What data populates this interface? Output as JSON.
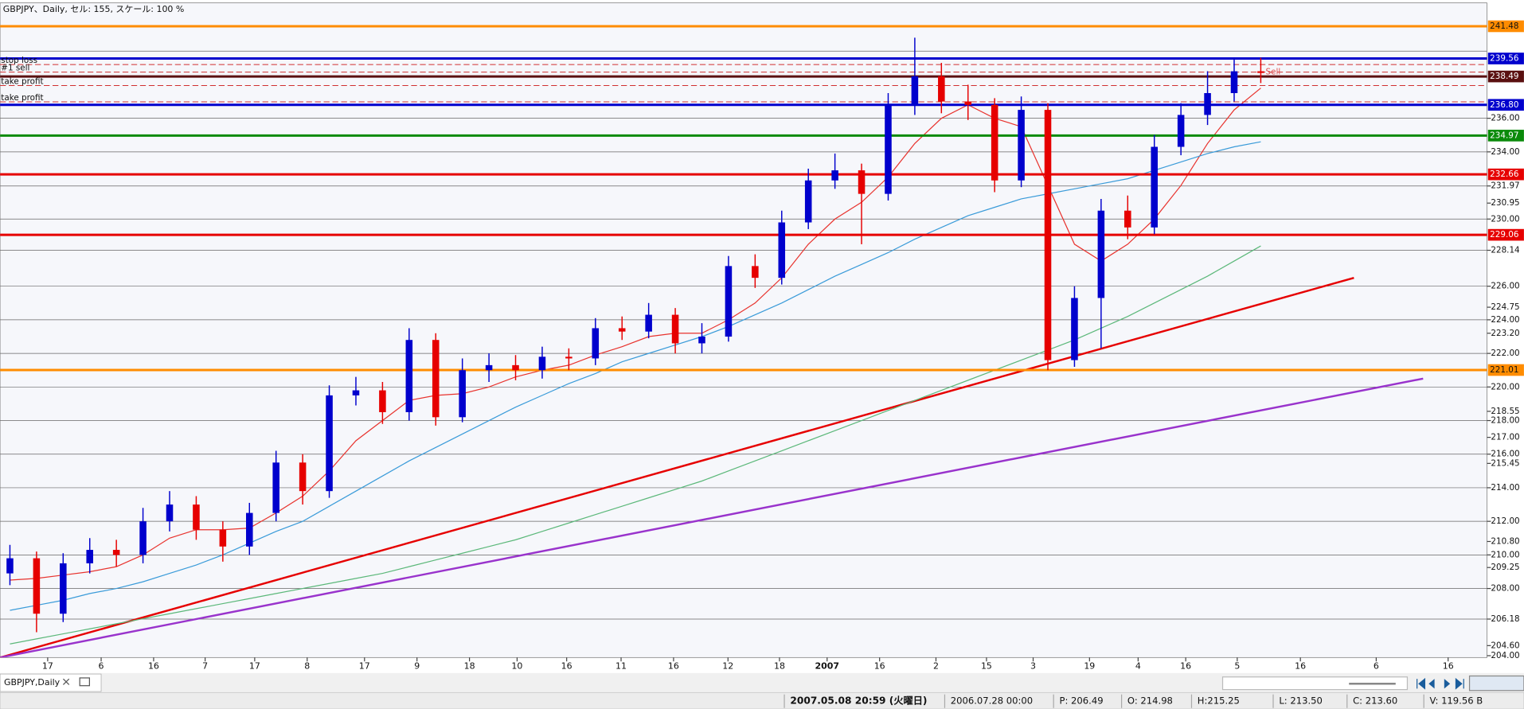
{
  "header": {
    "title": "GBPJPY、Daily, セル: 155, スケール: 100 %"
  },
  "chart_data": {
    "type": "candlestick",
    "ylim": [
      203.89,
      242.87
    ],
    "xlim": [
      -0.37,
      55.5
    ],
    "up_color": "#0000cd",
    "down_color": "#e60000",
    "x_labels": [
      "17",
      "6",
      "16",
      "7",
      "17",
      "8",
      "17",
      "9",
      "18",
      "10",
      "16",
      "11",
      "16",
      "12",
      "18",
      "2007",
      "16",
      "2",
      "15",
      "3",
      "19",
      "4",
      "16",
      "5",
      "16",
      "6",
      "16"
    ],
    "ohlc": [
      [
        208.9,
        210.6,
        208.2,
        209.8
      ],
      [
        209.8,
        210.2,
        205.4,
        206.5
      ],
      [
        206.5,
        210.1,
        206.0,
        209.5
      ],
      [
        209.5,
        211.0,
        208.9,
        210.3
      ],
      [
        210.3,
        210.9,
        209.3,
        210.0
      ],
      [
        210.0,
        212.8,
        209.5,
        212.0
      ],
      [
        212.0,
        213.8,
        211.4,
        213.0
      ],
      [
        213.0,
        213.5,
        210.9,
        211.5
      ],
      [
        211.5,
        212.0,
        209.6,
        210.5
      ],
      [
        210.5,
        213.1,
        210.0,
        212.5
      ],
      [
        212.5,
        216.2,
        212.0,
        215.5
      ],
      [
        215.5,
        216.0,
        213.0,
        213.8
      ],
      [
        213.8,
        220.1,
        213.4,
        219.5
      ],
      [
        219.5,
        220.6,
        218.9,
        219.8
      ],
      [
        219.8,
        220.3,
        217.8,
        218.5
      ],
      [
        218.5,
        223.5,
        218.0,
        222.8
      ],
      [
        222.8,
        223.2,
        217.7,
        218.2
      ],
      [
        218.2,
        221.7,
        217.9,
        221.0
      ],
      [
        221.0,
        222.0,
        220.3,
        221.3
      ],
      [
        221.3,
        221.9,
        220.4,
        221.0
      ],
      [
        221.0,
        222.4,
        220.5,
        221.8
      ],
      [
        221.8,
        222.3,
        221.0,
        221.7
      ],
      [
        221.7,
        224.1,
        221.3,
        223.5
      ],
      [
        223.5,
        224.2,
        222.8,
        223.3
      ],
      [
        223.3,
        225.0,
        222.9,
        224.3
      ],
      [
        224.3,
        224.7,
        222.0,
        222.6
      ],
      [
        222.6,
        223.8,
        222.0,
        223.0
      ],
      [
        223.0,
        227.8,
        222.7,
        227.2
      ],
      [
        227.2,
        227.9,
        225.9,
        226.5
      ],
      [
        226.5,
        230.5,
        226.1,
        229.8
      ],
      [
        229.8,
        233.0,
        229.4,
        232.3
      ],
      [
        232.3,
        233.9,
        231.8,
        232.9
      ],
      [
        232.9,
        233.3,
        228.5,
        231.5
      ],
      [
        231.5,
        237.5,
        231.1,
        236.8
      ],
      [
        236.8,
        240.8,
        236.2,
        238.5
      ],
      [
        238.5,
        239.3,
        236.3,
        237.0
      ],
      [
        237.0,
        238.0,
        235.9,
        236.8
      ],
      [
        236.8,
        237.2,
        231.6,
        232.3
      ],
      [
        232.3,
        237.3,
        231.9,
        236.5
      ],
      [
        236.5,
        236.9,
        221.0,
        221.6
      ],
      [
        221.6,
        226.0,
        221.2,
        225.3
      ],
      [
        225.3,
        231.2,
        222.3,
        230.5
      ],
      [
        230.5,
        231.4,
        228.8,
        229.5
      ],
      [
        229.5,
        235.0,
        229.1,
        234.3
      ],
      [
        234.3,
        236.9,
        233.8,
        236.2
      ],
      [
        236.2,
        238.8,
        235.6,
        237.5
      ],
      [
        237.5,
        239.5,
        237.0,
        238.8
      ],
      [
        238.8,
        239.6,
        238.1,
        238.7
      ]
    ],
    "moving_averages": [
      {
        "color": "#e8332e",
        "values": [
          208.5,
          208.6,
          208.8,
          209.0,
          209.3,
          210.0,
          211.0,
          211.5,
          211.5,
          211.6,
          212.5,
          213.5,
          215.0,
          216.8,
          218.0,
          219.2,
          219.5,
          219.6,
          220.0,
          220.6,
          221.0,
          221.3,
          221.9,
          222.4,
          223.0,
          223.2,
          223.2,
          224.0,
          225.0,
          226.5,
          228.5,
          230.0,
          231.0,
          232.5,
          234.5,
          236.0,
          236.8,
          236.0,
          235.5,
          232.0,
          228.5,
          227.5,
          228.5,
          230.0,
          232.0,
          234.5,
          236.5,
          237.8
        ]
      },
      {
        "color": "#3a9bd9",
        "values": [
          206.7,
          207.0,
          207.3,
          207.7,
          208.0,
          208.4,
          208.9,
          209.4,
          210.0,
          210.7,
          211.4,
          212.0,
          212.9,
          213.8,
          214.7,
          215.6,
          216.4,
          217.2,
          218.0,
          218.8,
          219.5,
          220.2,
          220.8,
          221.5,
          222.0,
          222.5,
          223.0,
          223.6,
          224.3,
          225.0,
          225.8,
          226.6,
          227.3,
          228.0,
          228.8,
          229.5,
          230.2,
          230.7,
          231.2,
          231.5,
          231.8,
          232.1,
          232.4,
          232.9,
          233.4,
          233.9,
          234.3,
          234.6
        ]
      },
      {
        "color": "#5cb87a",
        "values": [
          204.7,
          205.0,
          205.3,
          205.6,
          205.9,
          206.2,
          206.5,
          206.8,
          207.1,
          207.4,
          207.7,
          208.0,
          208.3,
          208.6,
          208.9,
          209.3,
          209.7,
          210.1,
          210.5,
          210.9,
          211.4,
          211.9,
          212.4,
          212.9,
          213.4,
          213.9,
          214.4,
          215.0,
          215.6,
          216.2,
          216.8,
          217.4,
          218.0,
          218.6,
          219.2,
          219.8,
          220.4,
          221.0,
          221.6,
          222.2,
          222.8,
          223.5,
          224.2,
          225.0,
          225.8,
          226.6,
          227.5,
          228.4
        ]
      }
    ],
    "hlines": [
      240.0,
      236.0,
      234.0,
      231.97,
      230.0,
      228.14,
      226.0,
      224.0,
      222.0,
      220.0,
      218.0,
      216.0,
      214.0,
      212.0,
      210.0,
      208.0,
      206.18
    ],
    "levels": [
      {
        "value": 241.48,
        "label": "241.48",
        "color": "#ff8c00"
      },
      {
        "value": 239.56,
        "label": "239.56",
        "color": "#0000cd"
      },
      {
        "value": 238.49,
        "label": "238.49",
        "color": "#5a1010"
      },
      {
        "value": 236.8,
        "label": "236.80",
        "color": "#0000cd"
      },
      {
        "value": 234.97,
        "label": "234.97",
        "color": "#0a8a0a"
      },
      {
        "value": 232.66,
        "label": "232.66",
        "color": "#e60000"
      },
      {
        "value": 229.06,
        "label": "229.06",
        "color": "#e60000"
      },
      {
        "value": 221.01,
        "label": "221.01",
        "color": "#ff8c00"
      }
    ],
    "orders": [
      {
        "label": "stop loss",
        "value": 239.2
      },
      {
        "label": "#1 sell",
        "value": 238.75
      },
      {
        "label": "take profit",
        "value": 237.95
      },
      {
        "label": "take profit",
        "value": 236.98
      }
    ],
    "trade_marker": {
      "label": "Sell"
    },
    "trendlines": [
      {
        "color": "#e60000",
        "from": [
          -0.37,
          203.89
        ],
        "to": [
          50.5,
          226.5
        ]
      },
      {
        "color": "#9933cc",
        "from": [
          -0.37,
          203.89
        ],
        "to": [
          53.1,
          220.5
        ]
      }
    ],
    "yticks": [
      {
        "value": 204.0,
        "label": "204.00"
      },
      {
        "value": 204.6,
        "label": "204.60"
      },
      {
        "value": 206.18,
        "label": "206.18"
      },
      {
        "value": 208.0,
        "label": "208.00"
      },
      {
        "value": 209.25,
        "label": "209.25"
      },
      {
        "value": 210.0,
        "label": "210.00"
      },
      {
        "value": 210.8,
        "label": "210.80"
      },
      {
        "value": 212.0,
        "label": "212.00"
      },
      {
        "value": 214.0,
        "label": "214.00"
      },
      {
        "value": 215.45,
        "label": "215.45"
      },
      {
        "value": 216.0,
        "label": "216.00"
      },
      {
        "value": 217.0,
        "label": "217.00"
      },
      {
        "value": 218.0,
        "label": "218.00"
      },
      {
        "value": 218.55,
        "label": "218.55"
      },
      {
        "value": 220.0,
        "label": "220.00"
      },
      {
        "value": 222.0,
        "label": "222.00"
      },
      {
        "value": 223.2,
        "label": "223.20"
      },
      {
        "value": 224.0,
        "label": "224.00"
      },
      {
        "value": 224.75,
        "label": "224.75"
      },
      {
        "value": 226.0,
        "label": "226.00"
      },
      {
        "value": 228.14,
        "label": "228.14"
      },
      {
        "value": 230.0,
        "label": "230.00"
      },
      {
        "value": 230.95,
        "label": "230.95"
      },
      {
        "value": 231.97,
        "label": "231.97"
      },
      {
        "value": 234.0,
        "label": "234.00"
      },
      {
        "value": 236.0,
        "label": "236.00"
      }
    ]
  },
  "tab": {
    "label": "GBPJPY,Daily"
  },
  "status": [
    "2007.05.08 20:59 (火曜日)",
    "2006.07.28 00:00",
    "P: 206.49",
    "O: 214.98",
    "H:215.25",
    "L: 213.50",
    "C: 213.60",
    "V: 119.56 B"
  ]
}
